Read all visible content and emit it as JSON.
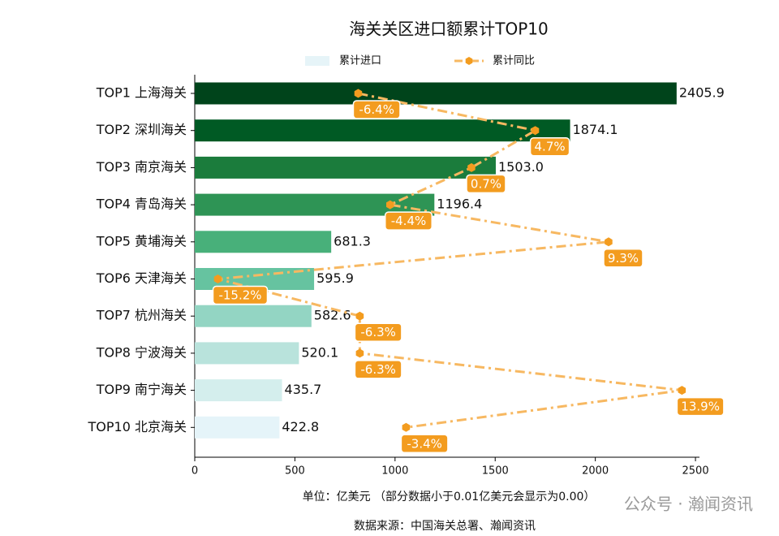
{
  "chart_data": {
    "type": "bar",
    "orientation": "horizontal",
    "title": "海关关区进口额累计TOP10",
    "categories": [
      "TOP1 上海海关",
      "TOP2 深圳海关",
      "TOP3 南京海关",
      "TOP4 青岛海关",
      "TOP5 黄埔海关",
      "TOP6 天津海关",
      "TOP7 杭州海关",
      "TOP8 宁波海关",
      "TOP9 南宁海关",
      "TOP10 北京海关"
    ],
    "series": [
      {
        "name": "累计进口",
        "type": "bar",
        "color": "#e6f4f8",
        "colors": [
          "#00441b",
          "#005a24",
          "#1b7c3c",
          "#2e9455",
          "#48b07a",
          "#66c3a0",
          "#93d5c3",
          "#b9e3dc",
          "#d4eeed",
          "#e5f4f9"
        ],
        "values": [
          2405.9,
          1874.1,
          1503.0,
          1196.4,
          681.3,
          595.9,
          582.6,
          520.1,
          435.7,
          422.8
        ],
        "value_labels": [
          "2405.9",
          "1874.1",
          "1503.0",
          "1196.4",
          "681.3",
          "595.9",
          "582.6",
          "520.1",
          "435.7",
          "422.8"
        ]
      },
      {
        "name": "累计同比",
        "type": "line",
        "axis": "x2",
        "color": "#f7b861",
        "marker_color": "#f39c1f",
        "values": [
          -6.4,
          4.7,
          0.7,
          -4.4,
          9.3,
          -15.2,
          -6.3,
          -6.3,
          13.9,
          -3.4
        ],
        "value_labels": [
          "-6.4%",
          "4.7%",
          "0.7%",
          "-4.4%",
          "9.3%",
          "-15.2%",
          "-6.3%",
          "-6.3%",
          "13.9%",
          "-3.4%"
        ]
      }
    ],
    "xlim": [
      0,
      2520
    ],
    "xticks": [
      0,
      500,
      1000,
      1500,
      2000,
      2500
    ],
    "x2lim": [
      -16.65,
      15.0
    ],
    "xlabel": "单位：亿美元  （部分数据小于0.01亿美元会显示为0.00）",
    "source": "数据来源：中国海关总署、瀚闻资讯",
    "watermark": "公众号 · 瀚闻资讯"
  }
}
